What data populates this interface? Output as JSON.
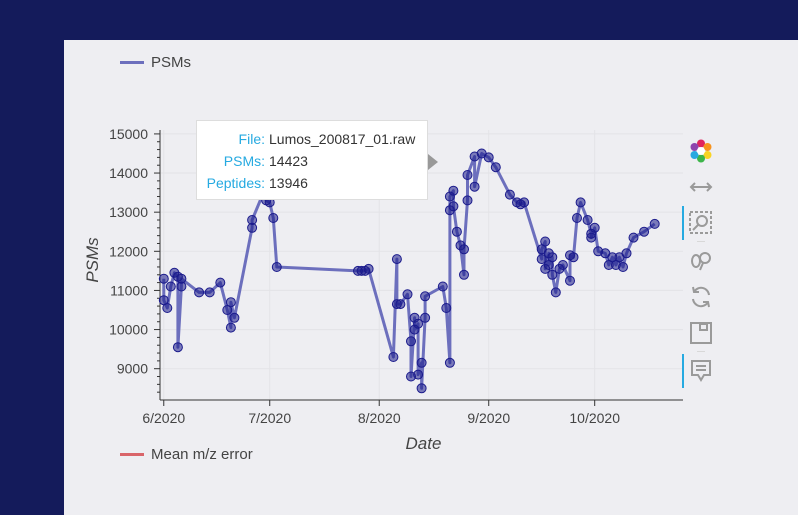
{
  "chart_data": {
    "type": "line",
    "title": "",
    "xlabel": "Date",
    "ylabel": "PSMs",
    "x_ticks": [
      "6/2020",
      "7/2020",
      "8/2020",
      "9/2020",
      "10/2020"
    ],
    "y_ticks": [
      "9000",
      "10000",
      "11000",
      "12000",
      "13000",
      "14000",
      "15000"
    ],
    "ylim": [
      8200,
      15100
    ],
    "xlim": [
      "2020-06-01",
      "2020-10-26"
    ],
    "grid": true,
    "legend_position": "top-left",
    "series": [
      {
        "name": "PSMs",
        "color": "#6c6fbd",
        "marker_color": "#1b1b8c",
        "points": [
          [
            "2020-06-01",
            11300
          ],
          [
            "2020-06-01",
            10750
          ],
          [
            "2020-06-02",
            10550
          ],
          [
            "2020-06-03",
            11100
          ],
          [
            "2020-06-04",
            11450
          ],
          [
            "2020-06-05",
            11350
          ],
          [
            "2020-06-05",
            9550
          ],
          [
            "2020-06-06",
            11100
          ],
          [
            "2020-06-06",
            11300
          ],
          [
            "2020-06-11",
            10950
          ],
          [
            "2020-06-14",
            10950
          ],
          [
            "2020-06-17",
            11200
          ],
          [
            "2020-06-19",
            10500
          ],
          [
            "2020-06-20",
            10050
          ],
          [
            "2020-06-20",
            10700
          ],
          [
            "2020-06-21",
            10300
          ],
          [
            "2020-06-26",
            12600
          ],
          [
            "2020-06-26",
            12800
          ],
          [
            "2020-06-29",
            13450
          ],
          [
            "2020-06-30",
            13300
          ],
          [
            "2020-07-01",
            13250
          ],
          [
            "2020-07-02",
            12850
          ],
          [
            "2020-07-03",
            11600
          ],
          [
            "2020-07-26",
            11500
          ],
          [
            "2020-07-27",
            11500
          ],
          [
            "2020-07-28",
            11500
          ],
          [
            "2020-07-29",
            11550
          ],
          [
            "2020-08-05",
            9300
          ],
          [
            "2020-08-06",
            11800
          ],
          [
            "2020-08-06",
            10650
          ],
          [
            "2020-08-07",
            10650
          ],
          [
            "2020-08-09",
            10900
          ],
          [
            "2020-08-10",
            9700
          ],
          [
            "2020-08-10",
            8800
          ],
          [
            "2020-08-11",
            10300
          ],
          [
            "2020-08-11",
            10000
          ],
          [
            "2020-08-12",
            10150
          ],
          [
            "2020-08-12",
            8850
          ],
          [
            "2020-08-13",
            9150
          ],
          [
            "2020-08-13",
            8500
          ],
          [
            "2020-08-14",
            10300
          ],
          [
            "2020-08-14",
            10850
          ],
          [
            "2020-08-19",
            11100
          ],
          [
            "2020-08-20",
            10550
          ],
          [
            "2020-08-21",
            9150
          ],
          [
            "2020-08-21",
            13050
          ],
          [
            "2020-08-21",
            13400
          ],
          [
            "2020-08-22",
            13550
          ],
          [
            "2020-08-22",
            13150
          ],
          [
            "2020-08-23",
            12500
          ],
          [
            "2020-08-24",
            12150
          ],
          [
            "2020-08-25",
            11400
          ],
          [
            "2020-08-25",
            12050
          ],
          [
            "2020-08-26",
            13300
          ],
          [
            "2020-08-26",
            13950
          ],
          [
            "2020-08-28",
            14423
          ],
          [
            "2020-08-28",
            13650
          ],
          [
            "2020-08-30",
            14500
          ],
          [
            "2020-09-01",
            14400
          ],
          [
            "2020-09-03",
            14150
          ],
          [
            "2020-09-07",
            13450
          ],
          [
            "2020-09-09",
            13250
          ],
          [
            "2020-09-10",
            13200
          ],
          [
            "2020-09-11",
            13250
          ],
          [
            "2020-09-16",
            11800
          ],
          [
            "2020-09-16",
            12050
          ],
          [
            "2020-09-17",
            12250
          ],
          [
            "2020-09-17",
            11550
          ],
          [
            "2020-09-18",
            11950
          ],
          [
            "2020-09-18",
            11650
          ],
          [
            "2020-09-19",
            11850
          ],
          [
            "2020-09-19",
            11400
          ],
          [
            "2020-09-20",
            10950
          ],
          [
            "2020-09-21",
            11550
          ],
          [
            "2020-09-22",
            11650
          ],
          [
            "2020-09-24",
            11250
          ],
          [
            "2020-09-24",
            11900
          ],
          [
            "2020-09-25",
            11850
          ],
          [
            "2020-09-26",
            12850
          ],
          [
            "2020-09-27",
            13250
          ],
          [
            "2020-09-29",
            12800
          ],
          [
            "2020-09-30",
            12450
          ],
          [
            "2020-09-30",
            12350
          ],
          [
            "2020-10-01",
            12600
          ],
          [
            "2020-10-02",
            12000
          ],
          [
            "2020-10-04",
            11950
          ],
          [
            "2020-10-05",
            11650
          ],
          [
            "2020-10-06",
            11850
          ],
          [
            "2020-10-07",
            11650
          ],
          [
            "2020-10-08",
            11850
          ],
          [
            "2020-10-09",
            11600
          ],
          [
            "2020-10-10",
            11950
          ],
          [
            "2020-10-12",
            12350
          ],
          [
            "2020-10-15",
            12500
          ],
          [
            "2020-10-18",
            12700
          ]
        ]
      },
      {
        "name": "Mean m/z error",
        "color": "#d9656a"
      }
    ]
  },
  "tooltip": {
    "rows": [
      {
        "key": "File:",
        "value": "Lumos_200817_01.raw"
      },
      {
        "key": "PSMs:",
        "value": "14423"
      },
      {
        "key": "Peptides:",
        "value": "13946"
      }
    ]
  },
  "toolbar": {
    "tools": [
      {
        "icon": "bokeh-logo-icon",
        "active": false
      },
      {
        "icon": "pan-icon",
        "active": false
      },
      {
        "icon": "box-zoom-icon",
        "active": true
      },
      {
        "icon": "wheel-zoom-icon",
        "active": false
      },
      {
        "icon": "reset-icon",
        "active": false
      },
      {
        "icon": "save-icon",
        "active": false
      },
      {
        "icon": "hover-icon",
        "active": true
      }
    ]
  }
}
